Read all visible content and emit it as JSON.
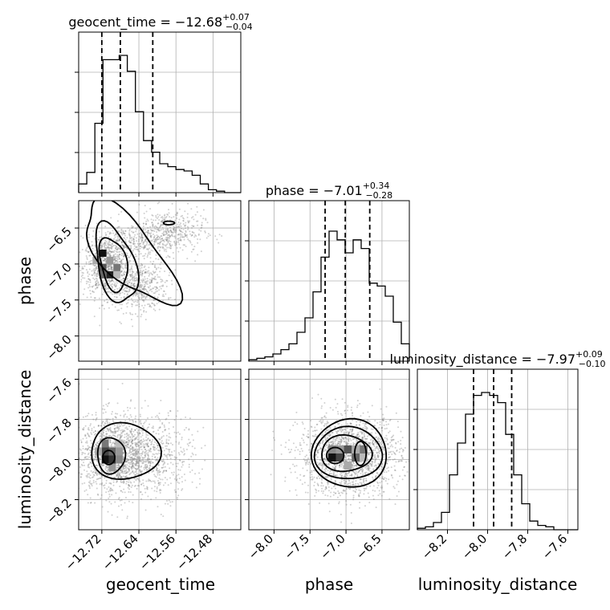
{
  "chart_data": {
    "type": "corner",
    "parameters": [
      "geocent_time",
      "phase",
      "luminosity_distance"
    ],
    "titles": {
      "geocent_time": {
        "param": "geocent_time",
        "median": "−12.68",
        "plus": "+0.07",
        "minus": "−0.04"
      },
      "phase": {
        "param": "phase",
        "median": "−7.01",
        "plus": "+0.34",
        "minus": "−0.28"
      },
      "luminosity_distance": {
        "param": "luminosity_distance",
        "median": "−7.97",
        "plus": "+0.09",
        "minus": "−0.10"
      }
    },
    "axes": {
      "geocent_time": {
        "range": [
          -12.77,
          -12.42
        ],
        "ticks": [
          -12.72,
          -12.64,
          -12.56,
          -12.48
        ],
        "tick_labels": [
          "−12.72",
          "−12.64",
          "−12.56",
          "−12.48"
        ]
      },
      "phase": {
        "range": [
          -8.35,
          -6.12
        ],
        "ticks": [
          -8.0,
          -7.5,
          -7.0,
          -6.5
        ],
        "tick_labels": [
          "−8.0",
          "−7.5",
          "−7.0",
          "−6.5"
        ]
      },
      "luminosity_distance": {
        "range": [
          -8.35,
          -7.55
        ],
        "ticks": [
          -8.2,
          -8.0,
          -7.8,
          -7.6
        ],
        "tick_labels": [
          "−8.2",
          "−8.0",
          "−7.8",
          "−7.6"
        ]
      }
    },
    "quantile_lines": {
      "geocent_time": [
        -12.72,
        -12.68,
        -12.61
      ],
      "phase": [
        -7.29,
        -7.01,
        -6.67
      ],
      "luminosity_distance": [
        -8.07,
        -7.97,
        -7.88
      ]
    },
    "histograms_1d": {
      "geocent_time": {
        "edges_start": -12.77,
        "bin_width": 0.0175,
        "counts": [
          0.06,
          0.14,
          0.48,
          0.92,
          0.92,
          0.95,
          0.84,
          0.56,
          0.36,
          0.28,
          0.2,
          0.18,
          0.16,
          0.15,
          0.12,
          0.06,
          0.02,
          0.01,
          0.0,
          0.0
        ]
      },
      "phase": {
        "edges_start": -8.35,
        "bin_width": 0.1115,
        "counts": [
          0.01,
          0.02,
          0.03,
          0.05,
          0.08,
          0.12,
          0.2,
          0.3,
          0.48,
          0.72,
          0.9,
          0.84,
          0.75,
          0.84,
          0.78,
          0.54,
          0.52,
          0.45,
          0.27,
          0.12
        ]
      },
      "luminosity_distance": {
        "edges_start": -8.35,
        "bin_width": 0.04,
        "counts": [
          0.01,
          0.02,
          0.05,
          0.12,
          0.38,
          0.6,
          0.8,
          0.93,
          0.95,
          0.93,
          0.88,
          0.66,
          0.38,
          0.18,
          0.06,
          0.03,
          0.02,
          0.0,
          0.0,
          0.0
        ]
      }
    },
    "grid": true,
    "scatter": true,
    "contours": true
  }
}
